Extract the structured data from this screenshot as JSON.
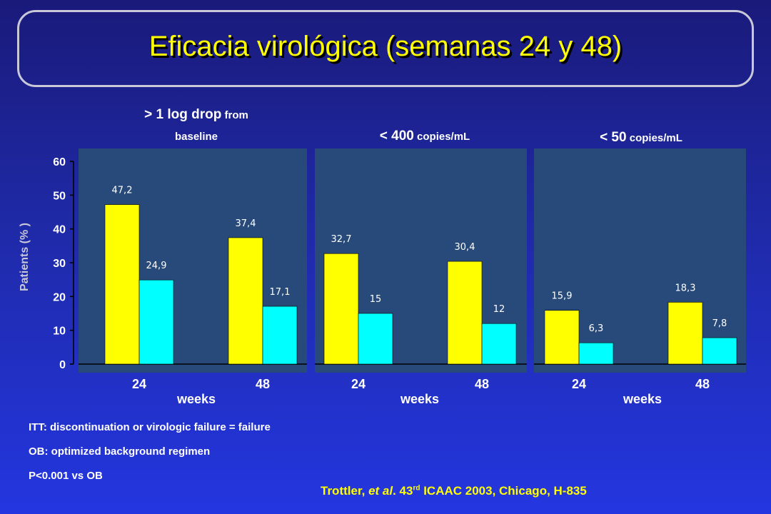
{
  "slide": {
    "title": "Eficacia virológica (semanas 24 y 48)"
  },
  "panels": [
    {
      "label_main": "> 1 log drop",
      "label_small": " from",
      "label_line2": "baseline"
    },
    {
      "label_main": "< 400",
      "label_small": " copies/mL",
      "label_line2": ""
    },
    {
      "label_main": "< 50",
      "label_small": " copies/mL",
      "label_line2": ""
    }
  ],
  "axis": {
    "ylabel": "Patients (% )",
    "xlabel": "weeks"
  },
  "notes": [
    "ITT: discontinuation or virologic failure = failure",
    "OB: optimized background regimen",
    "P<0.001 vs OB"
  ],
  "citation": {
    "author": "Trottler, ",
    "etal": "et al",
    "after_etal": ". 43",
    "sup": "rd",
    "rest": " ICAAC 2003, Chicago, H-835"
  },
  "colors": {
    "bar_primary": "#ffff00",
    "bar_secondary": "#00ffff",
    "plot_bg": "#284a7a",
    "text": "#ffffff",
    "accent": "#ffff00"
  },
  "chart_data": {
    "type": "bar",
    "ylim": [
      0,
      60
    ],
    "yticks": [
      "0",
      "10",
      "20",
      "30",
      "40",
      "50",
      "60"
    ],
    "grid": false,
    "panels": [
      {
        "categories": [
          "24",
          "48"
        ],
        "series": [
          {
            "values": [
              47.2,
              37.4
            ],
            "labels": [
              "47,2",
              "37,4"
            ]
          },
          {
            "values": [
              24.9,
              17.1
            ],
            "labels": [
              "24,9",
              "17,1"
            ]
          }
        ]
      },
      {
        "categories": [
          "24",
          "48"
        ],
        "series": [
          {
            "values": [
              32.7,
              30.4
            ],
            "labels": [
              "32,7",
              "30,4"
            ]
          },
          {
            "values": [
              15,
              12
            ],
            "labels": [
              "15",
              "12"
            ]
          }
        ]
      },
      {
        "categories": [
          "24",
          "48"
        ],
        "series": [
          {
            "values": [
              15.9,
              18.3
            ],
            "labels": [
              "15,9",
              "18,3"
            ]
          },
          {
            "values": [
              6.3,
              7.8
            ],
            "labels": [
              "6,3",
              "7,8"
            ]
          }
        ]
      }
    ]
  }
}
